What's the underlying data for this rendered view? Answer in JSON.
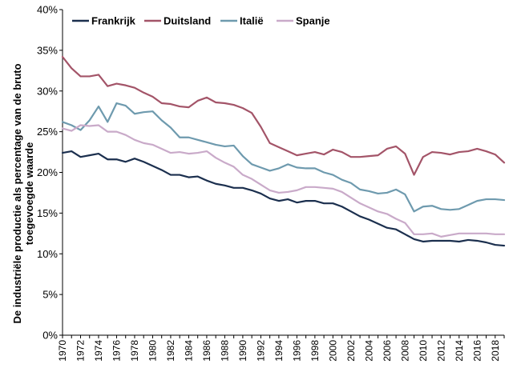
{
  "chart_data": {
    "type": "line",
    "title": "",
    "xlabel": "",
    "ylabel_lines": [
      "De industriële productie als percentage van de bruto",
      "toegevoegde waarde"
    ],
    "ylim": [
      0,
      40
    ],
    "xlim": [
      1970,
      2019
    ],
    "grid": false,
    "legend_position": "top-left",
    "y_ticks": [
      "0%",
      "5%",
      "10%",
      "15%",
      "20%",
      "25%",
      "30%",
      "35%",
      "40%"
    ],
    "x_ticks": [
      "1970",
      "1972",
      "1974",
      "1976",
      "1978",
      "1980",
      "1982",
      "1984",
      "1986",
      "1988",
      "1990",
      "1992",
      "1994",
      "1996",
      "1998",
      "2000",
      "2002",
      "2004",
      "2006",
      "2008",
      "2010",
      "2012",
      "2014",
      "2016",
      "2018"
    ],
    "x": [
      1970,
      1971,
      1972,
      1973,
      1974,
      1975,
      1976,
      1977,
      1978,
      1979,
      1980,
      1981,
      1982,
      1983,
      1984,
      1985,
      1986,
      1987,
      1988,
      1989,
      1990,
      1991,
      1992,
      1993,
      1994,
      1995,
      1996,
      1997,
      1998,
      1999,
      2000,
      2001,
      2002,
      2003,
      2004,
      2005,
      2006,
      2007,
      2008,
      2009,
      2010,
      2011,
      2012,
      2013,
      2014,
      2015,
      2016,
      2017,
      2018,
      2019
    ],
    "series": [
      {
        "name": "Frankrijk",
        "color": "#1b2f4e",
        "values": [
          22.4,
          22.6,
          21.9,
          22.1,
          22.3,
          21.6,
          21.6,
          21.3,
          21.7,
          21.3,
          20.8,
          20.3,
          19.7,
          19.7,
          19.4,
          19.5,
          19.0,
          18.6,
          18.4,
          18.1,
          18.1,
          17.8,
          17.4,
          16.8,
          16.5,
          16.7,
          16.3,
          16.5,
          16.5,
          16.2,
          16.2,
          15.8,
          15.2,
          14.6,
          14.2,
          13.7,
          13.2,
          13.0,
          12.4,
          11.8,
          11.5,
          11.6,
          11.6,
          11.6,
          11.5,
          11.7,
          11.6,
          11.4,
          11.1,
          11.0
        ]
      },
      {
        "name": "Duitsland",
        "color": "#a35468",
        "values": [
          34.2,
          32.8,
          31.8,
          31.8,
          32.0,
          30.6,
          30.9,
          30.7,
          30.4,
          29.8,
          29.3,
          28.5,
          28.4,
          28.1,
          28.0,
          28.8,
          29.2,
          28.6,
          28.5,
          28.3,
          27.9,
          27.3,
          25.6,
          23.6,
          23.1,
          22.6,
          22.1,
          22.3,
          22.5,
          22.2,
          22.8,
          22.5,
          21.9,
          21.9,
          22.0,
          22.1,
          22.9,
          23.2,
          22.3,
          19.7,
          21.9,
          22.5,
          22.4,
          22.2,
          22.5,
          22.6,
          22.9,
          22.6,
          22.2,
          21.2
        ]
      },
      {
        "name": "Italië",
        "color": "#6e9aae",
        "values": [
          26.2,
          25.8,
          25.2,
          26.4,
          28.1,
          26.2,
          28.5,
          28.2,
          27.2,
          27.4,
          27.5,
          26.4,
          25.5,
          24.3,
          24.3,
          24.0,
          23.7,
          23.4,
          23.2,
          23.3,
          22.0,
          21.0,
          20.6,
          20.2,
          20.5,
          21.0,
          20.6,
          20.5,
          20.5,
          20.0,
          19.7,
          19.1,
          18.7,
          17.9,
          17.7,
          17.4,
          17.5,
          17.9,
          17.3,
          15.2,
          15.8,
          15.9,
          15.5,
          15.4,
          15.5,
          16.0,
          16.5,
          16.7,
          16.7,
          16.6
        ]
      },
      {
        "name": "Spanje",
        "color": "#c9aac9",
        "values": [
          25.4,
          25.1,
          25.8,
          25.7,
          25.8,
          25.0,
          25.0,
          24.6,
          24.0,
          23.6,
          23.4,
          22.9,
          22.4,
          22.5,
          22.3,
          22.4,
          22.6,
          21.8,
          21.2,
          20.7,
          19.7,
          19.2,
          18.5,
          17.8,
          17.5,
          17.6,
          17.8,
          18.2,
          18.2,
          18.1,
          18.0,
          17.6,
          16.9,
          16.2,
          15.7,
          15.2,
          14.9,
          14.3,
          13.8,
          12.4,
          12.4,
          12.5,
          12.1,
          12.3,
          12.5,
          12.5,
          12.5,
          12.5,
          12.4,
          12.4
        ]
      }
    ]
  }
}
